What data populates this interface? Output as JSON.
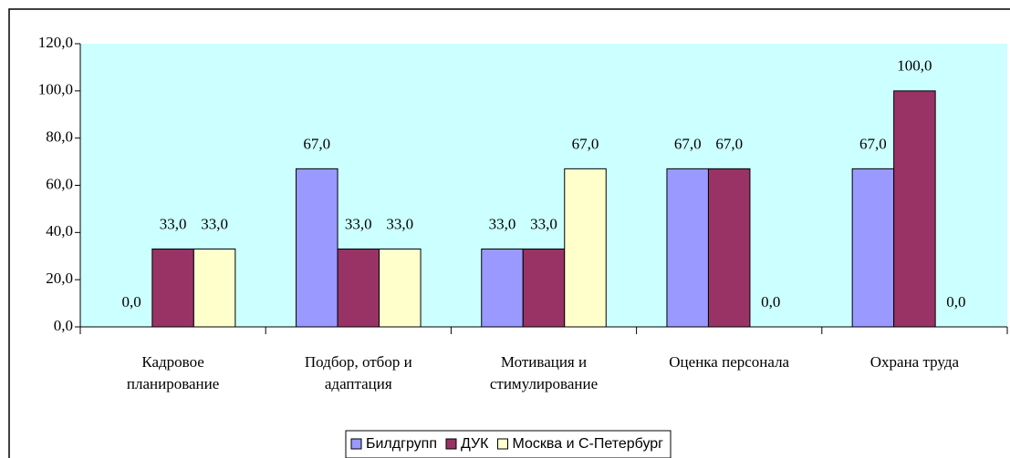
{
  "chart_data": {
    "type": "bar",
    "categories": [
      "Кадровое\nпланирование",
      "Подбор, отбор и\nадаптация",
      "Мотивация и\nстимулирование",
      "Оценка персонала",
      "Охрана труда"
    ],
    "series": [
      {
        "name": "Билдгрупп",
        "color": "#9999ff",
        "values": [
          0,
          67,
          33,
          67,
          67
        ],
        "value_labels": [
          "0,0",
          "67,0",
          "33,0",
          "67,0",
          "67,0"
        ]
      },
      {
        "name": "ДУК",
        "color": "#993366",
        "values": [
          33,
          33,
          33,
          67,
          100
        ],
        "value_labels": [
          "33,0",
          "33,0",
          "33,0",
          "67,0",
          "100,0"
        ]
      },
      {
        "name": "Москва и С-Петербург",
        "color": "#ffffcc",
        "values": [
          33,
          33,
          67,
          0,
          0
        ],
        "value_labels": [
          "33,0",
          "33,0",
          "67,0",
          "0,0",
          "0,0"
        ]
      }
    ],
    "ylim": [
      0,
      120
    ],
    "yticks": [
      {
        "value": 0,
        "label": "0,0"
      },
      {
        "value": 20,
        "label": "20,0"
      },
      {
        "value": 40,
        "label": "40,0"
      },
      {
        "value": 60,
        "label": "60,0"
      },
      {
        "value": 80,
        "label": "80,0"
      },
      {
        "value": 100,
        "label": "100,0"
      },
      {
        "value": 120,
        "label": "120,0"
      }
    ],
    "plot_background": "#ccffff",
    "legend": "bottom"
  }
}
